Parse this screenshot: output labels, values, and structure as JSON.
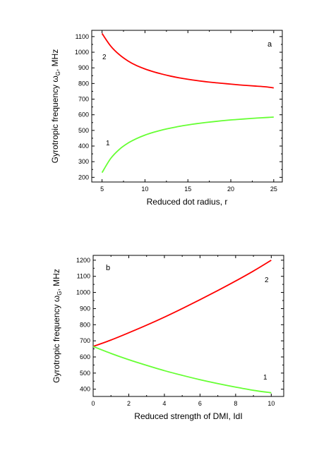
{
  "chart_data": [
    {
      "type": "line",
      "panel_label": "a",
      "xlabel": "Reduced dot radius, r",
      "ylabel_main": "Gyrotropic frequency ",
      "ylabel_symbol": "ω",
      "ylabel_sub": "G",
      "ylabel_unit": ", MHz",
      "xlim": [
        3.8,
        26
      ],
      "ylim": [
        170,
        1140
      ],
      "xticks": [
        5,
        10,
        15,
        20,
        25
      ],
      "yticks": [
        200,
        300,
        400,
        500,
        600,
        700,
        800,
        900,
        1000,
        1100
      ],
      "grid": false,
      "series": [
        {
          "label": "2",
          "color": "#ff0000",
          "x": [
            5,
            6,
            7,
            8,
            9,
            10,
            11,
            12,
            13,
            14,
            15,
            16,
            17,
            18,
            19,
            20,
            21,
            22,
            23,
            24,
            25
          ],
          "y": [
            1120,
            1040,
            985,
            945,
            915,
            893,
            875,
            860,
            847,
            836,
            827,
            819,
            812,
            806,
            801,
            796,
            791,
            787,
            783,
            779,
            772
          ]
        },
        {
          "label": "1",
          "color": "#66ff33",
          "x": [
            5,
            6,
            7,
            8,
            9,
            10,
            11,
            12,
            13,
            14,
            15,
            16,
            17,
            18,
            19,
            20,
            21,
            22,
            23,
            24,
            25
          ],
          "y": [
            230,
            320,
            378,
            418,
            447,
            470,
            488,
            503,
            515,
            526,
            535,
            543,
            550,
            556,
            562,
            567,
            571,
            575,
            579,
            582,
            585
          ]
        }
      ]
    },
    {
      "type": "line",
      "panel_label": "b",
      "xlabel": "Reduced strength of DMI, IdI",
      "ylabel_main": "Gyrotropic frequency ",
      "ylabel_symbol": "ω",
      "ylabel_sub": "G",
      "ylabel_unit": ", MHz",
      "xlim": [
        0,
        10.7
      ],
      "ylim": [
        355,
        1230
      ],
      "xticks": [
        0,
        2,
        4,
        6,
        8,
        10
      ],
      "yticks": [
        400,
        500,
        600,
        700,
        800,
        900,
        1000,
        1100,
        1200
      ],
      "grid": false,
      "series": [
        {
          "label": "2",
          "color": "#ff0000",
          "x": [
            0,
            1,
            2,
            3,
            4,
            5,
            6,
            7,
            8,
            9,
            10
          ],
          "y": [
            665,
            705,
            750,
            797,
            847,
            900,
            955,
            1012,
            1071,
            1133,
            1200
          ]
        },
        {
          "label": "1",
          "color": "#66ff33",
          "x": [
            0,
            1,
            2,
            3,
            4,
            5,
            6,
            7,
            8,
            9,
            10
          ],
          "y": [
            665,
            622,
            583,
            548,
            515,
            486,
            459,
            435,
            413,
            393,
            378
          ]
        }
      ]
    }
  ]
}
